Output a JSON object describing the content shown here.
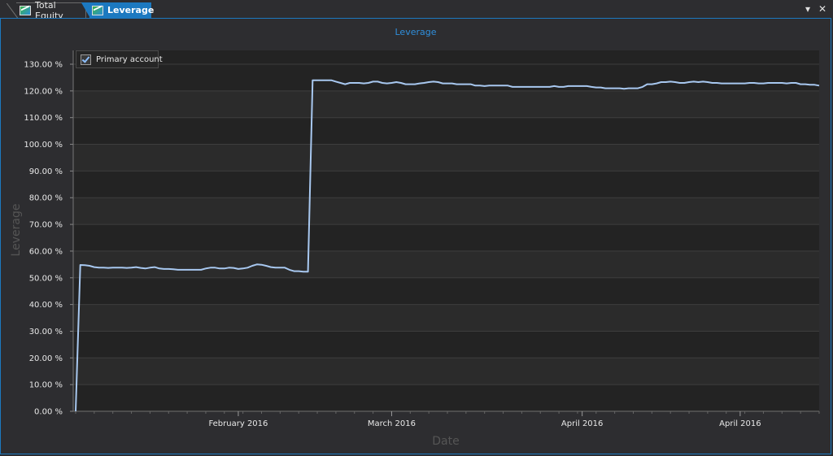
{
  "tabs": [
    {
      "label": "Total Equity",
      "icon": "chart-icon",
      "active": false
    },
    {
      "label": "Leverage",
      "icon": "chart-icon",
      "active": true
    }
  ],
  "window_controls": {
    "dropdown": "▾",
    "close": "✕"
  },
  "legend": {
    "label": "Primary account",
    "checked": true
  },
  "colors": {
    "accent": "#1c79c0",
    "line": "#a8c8f0",
    "plot_bg": "#232323",
    "band": "#2b2b2b",
    "grid": "#3e3e3e"
  },
  "chart_data": {
    "type": "line",
    "title": "Leverage",
    "xlabel": "Date",
    "ylabel": "Leverage",
    "ylim": [
      0,
      130
    ],
    "yticks": [
      "0.00 %",
      "10.00 %",
      "20.00 %",
      "30.00 %",
      "40.00 %",
      "50.00 %",
      "60.00 %",
      "70.00 %",
      "80.00 %",
      "90.00 %",
      "100.00 %",
      "110.00 %",
      "120.00 %",
      "130.00 %"
    ],
    "xticks": [
      {
        "label": "February 2016",
        "index": 35
      },
      {
        "label": "March 2016",
        "index": 68
      },
      {
        "label": "April 2016",
        "index": 109
      },
      {
        "label": "April 2016",
        "index": 143
      }
    ],
    "series": [
      {
        "name": "Primary account",
        "values": [
          0,
          54.8,
          54.7,
          54.5,
          54.0,
          53.8,
          53.8,
          53.7,
          53.8,
          53.8,
          53.8,
          53.7,
          53.8,
          54.0,
          53.7,
          53.5,
          53.8,
          54.0,
          53.5,
          53.3,
          53.3,
          53.2,
          53.0,
          53.0,
          53.0,
          53.0,
          53.0,
          53.0,
          53.5,
          53.8,
          53.8,
          53.5,
          53.5,
          53.8,
          53.7,
          53.3,
          53.5,
          53.8,
          54.5,
          55.0,
          54.9,
          54.5,
          54.0,
          53.8,
          53.8,
          53.8,
          53.0,
          52.5,
          52.5,
          52.3,
          52.3,
          124.0,
          124.0,
          124.0,
          124.0,
          124.0,
          123.5,
          123.0,
          122.5,
          123.0,
          123.0,
          123.0,
          122.8,
          123.0,
          123.5,
          123.5,
          123.0,
          122.8,
          123.0,
          123.3,
          123.0,
          122.5,
          122.5,
          122.5,
          122.8,
          123.0,
          123.3,
          123.5,
          123.3,
          122.8,
          122.8,
          122.8,
          122.5,
          122.5,
          122.5,
          122.5,
          122.0,
          122.0,
          121.8,
          122.0,
          122.0,
          122.0,
          122.0,
          122.0,
          121.5,
          121.5,
          121.5,
          121.5,
          121.5,
          121.5,
          121.5,
          121.5,
          121.5,
          121.8,
          121.5,
          121.5,
          121.8,
          121.8,
          121.8,
          121.8,
          121.8,
          121.5,
          121.3,
          121.3,
          121.0,
          121.0,
          121.0,
          121.0,
          120.8,
          121.0,
          121.0,
          121.0,
          121.5,
          122.5,
          122.5,
          122.8,
          123.3,
          123.3,
          123.5,
          123.3,
          123.0,
          123.0,
          123.3,
          123.5,
          123.3,
          123.5,
          123.3,
          123.0,
          123.0,
          122.8,
          122.8,
          122.8,
          122.8,
          122.8,
          122.8,
          123.0,
          123.0,
          122.8,
          122.8,
          123.0,
          123.0,
          123.0,
          123.0,
          122.8,
          123.0,
          123.0,
          122.5,
          122.5,
          122.3,
          122.3,
          122.0
        ]
      }
    ]
  }
}
